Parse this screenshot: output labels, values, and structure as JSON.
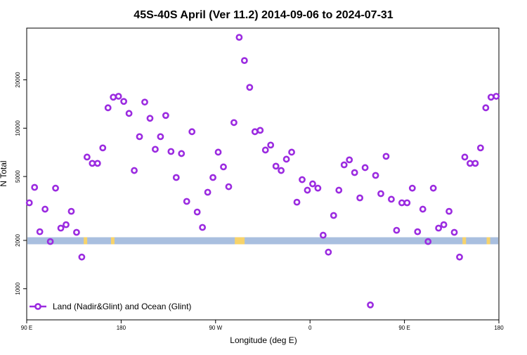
{
  "chart_data": {
    "type": "scatter",
    "title": "45S-40S April (Ver 11.2)   2014-09-06 to 2024-07-31",
    "x_label": "Longitude (deg E)",
    "y_label": "N Total",
    "log_y": true,
    "legend": "bottom-left",
    "xlim": [
      90,
      540
    ],
    "ylim": [
      640,
      42000
    ],
    "xticks": [
      {
        "value": 90,
        "label": "90 E"
      },
      180,
      {
        "value": 270,
        "label": "90 W"
      },
      {
        "value": 360,
        "label": "0"
      },
      {
        "value": 450,
        "label": "90 E"
      },
      {
        "value": 540,
        "label": "180"
      }
    ],
    "yticks": [
      1000,
      2000,
      5000,
      10000,
      20000
    ],
    "band": {
      "value": 1990,
      "color": "#a9bfdf",
      "highlight_color": "#f7d36a",
      "highlights_x": [
        146,
        172,
        290,
        293,
        296,
        507,
        530
      ]
    },
    "series": [
      {
        "name": "Land (Nadir&Glint) and Ocean (Glint)",
        "color": "#9b2be0",
        "x": [
          92.5,
          97.5,
          102.5,
          107.5,
          112.5,
          117.5,
          122.5,
          127.5,
          132.5,
          137.5,
          142.5,
          147.5,
          152.5,
          157.5,
          162.5,
          167.5,
          172.5,
          177.5,
          182.5,
          187.5,
          192.5,
          197.5,
          202.5,
          207.5,
          212.5,
          217.5,
          222.5,
          227.5,
          232.5,
          237.5,
          242.5,
          247.5,
          252.5,
          257.5,
          262.5,
          267.5,
          272.5,
          277.5,
          282.5,
          287.5,
          292.5,
          297.5,
          302.5,
          307.5,
          312.5,
          317.5,
          322.5,
          327.5,
          332.5,
          337.5,
          342.5,
          347.5,
          352.5,
          357.5,
          362.5,
          367.5,
          372.5,
          377.5,
          382.5,
          387.5,
          392.5,
          397.5,
          402.5,
          407.5,
          412.5,
          417.5,
          422.5,
          427.5,
          432.5,
          437.5,
          442.5,
          447.5,
          452.5,
          457.5,
          462.5,
          467.5,
          472.5,
          477.5,
          482.5,
          487.5,
          492.5,
          497.5,
          502.5,
          507.5,
          512.5,
          517.5,
          522.5,
          527.5,
          532.5,
          537.5
        ],
        "values": [
          3430,
          4280,
          2265,
          3130,
          1967,
          4230,
          2385,
          2505,
          3035,
          2245,
          1575,
          6610,
          6040,
          6040,
          7540,
          13400,
          15600,
          15800,
          14680,
          12360,
          5450,
          8860,
          14540,
          11520,
          7390,
          8860,
          12000,
          7160,
          4930,
          6950,
          3500,
          9510,
          3005,
          2410,
          3990,
          4930,
          7090,
          5740,
          4320,
          10840,
          36800,
          26380,
          17960,
          9510,
          9700,
          7310,
          7850,
          5800,
          5450,
          6410,
          7090,
          3460,
          4780,
          4110,
          4500,
          4230,
          2155,
          1690,
          2860,
          4110,
          5910,
          6350,
          5290,
          3680,
          5680,
          793,
          5080,
          3910,
          6680,
          3610,
          2312,
          3430,
          3430,
          4230,
          2265,
          3130,
          1967,
          4230,
          2385,
          2505,
          3035,
          2245,
          1575,
          6610,
          6040,
          6040,
          7540,
          13400,
          15600,
          15800
        ]
      }
    ]
  }
}
